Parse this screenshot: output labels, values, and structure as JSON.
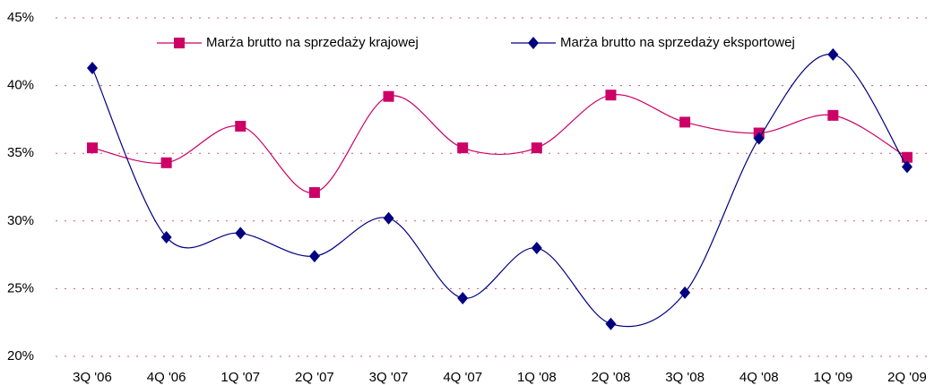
{
  "chart_data": {
    "type": "line",
    "categories": [
      "3Q '06",
      "4Q '06",
      "1Q '07",
      "2Q '07",
      "3Q '07",
      "4Q '07",
      "1Q '08",
      "2Q '08",
      "3Q '08",
      "4Q '08",
      "1Q '09",
      "2Q '09"
    ],
    "series": [
      {
        "name": "Marża brutto na sprzedaży krajowej",
        "color": "#cc0066",
        "marker": "square",
        "values": [
          35.4,
          34.3,
          37.0,
          32.1,
          39.2,
          35.4,
          35.4,
          39.3,
          37.3,
          36.5,
          37.8,
          34.7
        ]
      },
      {
        "name": "Marża brutto na sprzedaży eksportowej",
        "color": "#000080",
        "marker": "diamond",
        "values": [
          41.3,
          28.8,
          29.1,
          27.4,
          30.2,
          24.3,
          28.0,
          22.4,
          24.7,
          36.1,
          42.3,
          34.0
        ]
      }
    ],
    "ylim": [
      20,
      45
    ],
    "yticks": [
      {
        "value": 20,
        "label": "20%"
      },
      {
        "value": 25,
        "label": "25%"
      },
      {
        "value": 30,
        "label": "30%"
      },
      {
        "value": 35,
        "label": "35%"
      },
      {
        "value": 40,
        "label": "40%"
      },
      {
        "value": 45,
        "label": "45%"
      }
    ],
    "grid": true,
    "smooth": true,
    "legend": "top"
  }
}
